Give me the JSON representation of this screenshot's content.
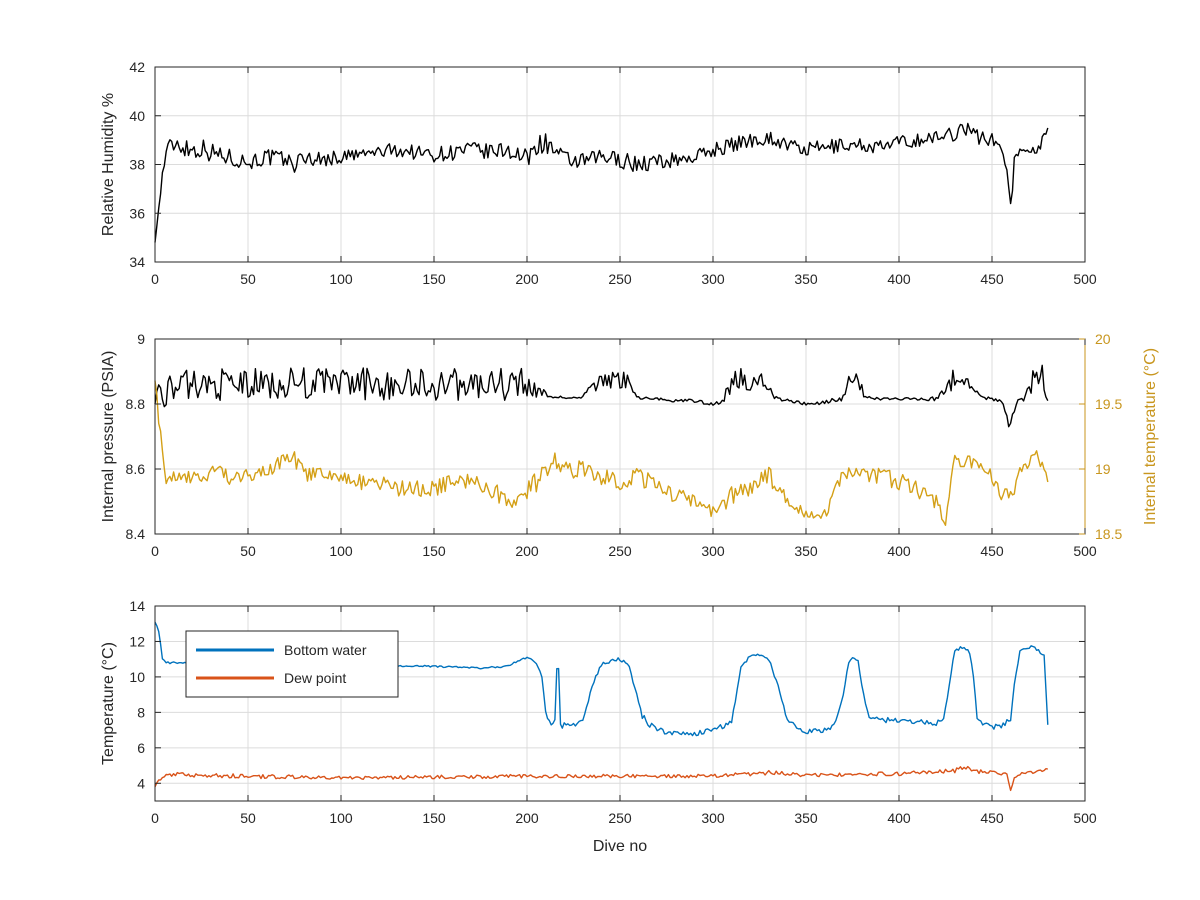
{
  "chart_data": [
    {
      "type": "line",
      "title": "",
      "xlabel": "",
      "ylabel": "Relative Humidity %",
      "xlim": [
        0,
        500
      ],
      "ylim": [
        34,
        42
      ],
      "grid": true,
      "x_ticks": [
        0,
        50,
        100,
        150,
        200,
        250,
        300,
        350,
        400,
        450,
        500
      ],
      "y_ticks": [
        34,
        36,
        38,
        40,
        42
      ],
      "series": [
        {
          "color": "#000000",
          "x": [
            0,
            1,
            2,
            3,
            4,
            5,
            6,
            8,
            10,
            15,
            20,
            25,
            30,
            35,
            40,
            45,
            50,
            60,
            70,
            75,
            80,
            90,
            100,
            110,
            120,
            130,
            140,
            150,
            160,
            170,
            180,
            190,
            195,
            200,
            205,
            210,
            220,
            230,
            240,
            250,
            260,
            270,
            280,
            290,
            300,
            310,
            320,
            330,
            340,
            350,
            360,
            370,
            380,
            390,
            400,
            410,
            420,
            430,
            435,
            440,
            445,
            450,
            455,
            458,
            460,
            461,
            462,
            465,
            470,
            475,
            478,
            480
          ],
          "y": [
            34.8,
            35.5,
            36.2,
            36.8,
            37.6,
            38.1,
            38.5,
            38.7,
            38.9,
            38.8,
            38.6,
            38.7,
            38.5,
            38.4,
            38.3,
            38.2,
            38.1,
            38.3,
            38.2,
            38.0,
            38.3,
            38.2,
            38.3,
            38.4,
            38.5,
            38.6,
            38.5,
            38.4,
            38.5,
            38.6,
            38.5,
            38.6,
            38.4,
            38.2,
            38.8,
            38.9,
            38.2,
            38.1,
            38.3,
            38.2,
            38.0,
            38.1,
            38.2,
            38.3,
            38.6,
            38.8,
            39.0,
            39.1,
            38.8,
            38.6,
            38.7,
            38.8,
            38.8,
            38.7,
            38.9,
            39.0,
            39.1,
            39.3,
            39.6,
            39.2,
            39.1,
            39.0,
            38.7,
            37.8,
            36.4,
            37.0,
            38.2,
            38.5,
            38.7,
            38.6,
            39.3,
            39.5
          ],
          "amp": [
            0,
            0,
            0,
            0,
            0.2,
            0.3,
            0.3,
            0.4,
            0.5,
            0.5,
            0.5,
            0.4,
            0.4,
            0.4,
            0.35,
            0.35,
            0.35,
            0.35,
            0.35,
            0.35,
            0.35,
            0.3,
            0.3,
            0.3,
            0.3,
            0.3,
            0.3,
            0.3,
            0.35,
            0.35,
            0.35,
            0.35,
            0.4,
            0.4,
            0.45,
            0.4,
            0.35,
            0.35,
            0.35,
            0.35,
            0.35,
            0.35,
            0.3,
            0.3,
            0.3,
            0.3,
            0.3,
            0.3,
            0.3,
            0.3,
            0.3,
            0.3,
            0.3,
            0.3,
            0.3,
            0.3,
            0.3,
            0.35,
            0.35,
            0.35,
            0.3,
            0.3,
            0.2,
            0.1,
            0,
            0.1,
            0.2,
            0.2,
            0.2,
            0.2,
            0.2,
            0.2
          ]
        }
      ]
    },
    {
      "type": "line",
      "title": "",
      "xlabel": "",
      "ylabel": "Internal pressure (PSIA)",
      "ylabel_right": "Internal temperature (°C)",
      "xlim": [
        0,
        500
      ],
      "ylim": [
        8.4,
        9
      ],
      "ylim_right": [
        18.5,
        20
      ],
      "grid": true,
      "x_ticks": [
        0,
        50,
        100,
        150,
        200,
        250,
        300,
        350,
        400,
        450,
        500
      ],
      "y_ticks": [
        8.4,
        8.6,
        8.8,
        9
      ],
      "y_ticks_right": [
        18.5,
        19,
        19.5,
        20
      ],
      "series": [
        {
          "axis": "left",
          "color": "#000000",
          "x": [
            0,
            2,
            5,
            8,
            20,
            40,
            60,
            80,
            100,
            120,
            140,
            160,
            180,
            198,
            200,
            205,
            210,
            215,
            220,
            230,
            236,
            245,
            255,
            260,
            270,
            280,
            290,
            300,
            305,
            310,
            320,
            330,
            333,
            340,
            350,
            360,
            370,
            373,
            378,
            382,
            390,
            400,
            410,
            420,
            430,
            435,
            440,
            445,
            455,
            458,
            459,
            461,
            463,
            468,
            472,
            478,
            480
          ],
          "y": [
            8.81,
            8.85,
            8.82,
            8.85,
            8.86,
            8.86,
            8.86,
            8.865,
            8.865,
            8.86,
            8.86,
            8.86,
            8.86,
            8.86,
            8.85,
            8.84,
            8.83,
            8.82,
            8.82,
            8.82,
            8.86,
            8.875,
            8.87,
            8.82,
            8.815,
            8.81,
            8.81,
            8.8,
            8.81,
            8.87,
            8.875,
            8.87,
            8.82,
            8.81,
            8.8,
            8.805,
            8.82,
            8.865,
            8.87,
            8.82,
            8.815,
            8.815,
            8.815,
            8.82,
            8.88,
            8.88,
            8.84,
            8.82,
            8.81,
            8.77,
            8.73,
            8.76,
            8.8,
            8.82,
            8.88,
            8.88,
            8.81
          ],
          "amp": [
            0.01,
            0.02,
            0.03,
            0.04,
            0.05,
            0.05,
            0.05,
            0.05,
            0.05,
            0.05,
            0.05,
            0.05,
            0.05,
            0.05,
            0.04,
            0.02,
            0.01,
            0.005,
            0.005,
            0.005,
            0.025,
            0.03,
            0.025,
            0.005,
            0.005,
            0.005,
            0.005,
            0.005,
            0.01,
            0.035,
            0.04,
            0.035,
            0.005,
            0.005,
            0.005,
            0.005,
            0.01,
            0.03,
            0.03,
            0.005,
            0.005,
            0.005,
            0.005,
            0.01,
            0.035,
            0.035,
            0.01,
            0.005,
            0.005,
            0.01,
            0,
            0.01,
            0.01,
            0.01,
            0.04,
            0.04,
            0.01
          ]
        },
        {
          "axis": "right",
          "color": "#D4A017",
          "x": [
            0,
            2,
            4,
            6,
            10,
            20,
            30,
            35,
            40,
            50,
            60,
            70,
            75,
            80,
            90,
            100,
            110,
            120,
            130,
            140,
            150,
            160,
            170,
            180,
            185,
            190,
            200,
            210,
            215,
            220,
            230,
            240,
            250,
            260,
            270,
            280,
            290,
            300,
            310,
            320,
            330,
            340,
            350,
            360,
            370,
            380,
            390,
            400,
            410,
            420,
            425,
            430,
            440,
            450,
            455,
            460,
            465,
            470,
            475,
            480
          ],
          "y": [
            19.7,
            19.4,
            19.1,
            18.9,
            18.95,
            18.95,
            18.95,
            19.05,
            18.9,
            18.95,
            19.0,
            19.05,
            19.1,
            18.95,
            18.95,
            18.95,
            18.9,
            18.9,
            18.85,
            18.85,
            18.85,
            18.9,
            18.9,
            18.85,
            18.8,
            18.75,
            18.85,
            18.95,
            19.1,
            19.0,
            19.0,
            18.95,
            18.9,
            18.95,
            18.85,
            18.8,
            18.75,
            18.65,
            18.8,
            18.85,
            18.95,
            18.75,
            18.65,
            18.65,
            18.95,
            18.95,
            18.95,
            18.9,
            18.85,
            18.75,
            18.6,
            19.05,
            19.05,
            18.95,
            18.8,
            18.8,
            18.95,
            19.05,
            19.1,
            18.9
          ],
          "amp": [
            0.02,
            0.05,
            0.05,
            0.04,
            0.05,
            0.06,
            0.06,
            0.08,
            0.06,
            0.06,
            0.06,
            0.07,
            0.08,
            0.06,
            0.06,
            0.05,
            0.06,
            0.06,
            0.06,
            0.06,
            0.06,
            0.07,
            0.07,
            0.07,
            0.07,
            0.07,
            0.08,
            0.09,
            0.1,
            0.07,
            0.07,
            0.07,
            0.07,
            0.07,
            0.07,
            0.06,
            0.06,
            0.06,
            0.07,
            0.07,
            0.07,
            0.06,
            0.04,
            0.04,
            0.06,
            0.06,
            0.06,
            0.07,
            0.07,
            0.07,
            0.08,
            0.06,
            0.05,
            0.05,
            0.05,
            0.05,
            0.06,
            0.06,
            0.06,
            0.04
          ]
        }
      ]
    },
    {
      "type": "line",
      "title": "",
      "xlabel": "Dive no",
      "ylabel": "Temperature (°C)",
      "xlim": [
        0,
        500
      ],
      "ylim": [
        3,
        14
      ],
      "grid": true,
      "legend_position": "top-left",
      "x_ticks": [
        0,
        50,
        100,
        150,
        200,
        250,
        300,
        350,
        400,
        450,
        500
      ],
      "y_ticks": [
        4,
        6,
        8,
        10,
        12,
        14
      ],
      "series": [
        {
          "name": "Bottom water",
          "color": "#0072BD",
          "x": [
            0,
            2,
            4,
            6,
            10,
            30,
            50,
            80,
            100,
            130,
            150,
            175,
            190,
            195,
            200,
            205,
            208,
            210,
            212,
            215,
            216,
            217,
            218,
            220,
            225,
            230,
            235,
            240,
            245,
            250,
            255,
            260,
            262,
            265,
            270,
            280,
            290,
            300,
            305,
            310,
            315,
            320,
            325,
            330,
            335,
            340,
            350,
            360,
            365,
            370,
            373,
            375,
            378,
            380,
            383,
            385,
            390,
            400,
            410,
            420,
            424,
            427,
            430,
            435,
            438,
            440,
            442,
            445,
            450,
            455,
            460,
            462,
            465,
            470,
            475,
            478,
            480
          ],
          "y": [
            13.1,
            12.6,
            11.0,
            10.8,
            10.8,
            10.8,
            10.8,
            10.7,
            10.7,
            10.6,
            10.6,
            10.5,
            10.6,
            10.9,
            11.1,
            10.8,
            10.0,
            8.0,
            7.4,
            7.5,
            10.5,
            10.5,
            7.2,
            7.3,
            7.3,
            7.5,
            9.5,
            10.7,
            10.9,
            11.0,
            10.6,
            8.5,
            7.8,
            7.4,
            7.0,
            6.8,
            6.8,
            7.0,
            7.2,
            7.5,
            10.5,
            11.2,
            11.3,
            11.0,
            9.5,
            7.5,
            6.9,
            7.0,
            7.2,
            9.0,
            10.8,
            11.1,
            10.9,
            9.5,
            8.0,
            7.6,
            7.6,
            7.5,
            7.5,
            7.4,
            7.5,
            9.5,
            11.5,
            11.7,
            11.4,
            10.0,
            7.8,
            7.3,
            7.2,
            7.2,
            7.6,
            9.5,
            11.4,
            11.7,
            11.5,
            11.2,
            7.3
          ],
          "amp": [
            0,
            0.05,
            0.05,
            0.05,
            0.05,
            0.05,
            0.05,
            0.05,
            0.05,
            0.05,
            0.05,
            0.05,
            0.05,
            0.05,
            0.05,
            0.05,
            0.1,
            0.15,
            0.15,
            0.15,
            0.1,
            0.1,
            0.15,
            0.15,
            0.15,
            0.15,
            0.1,
            0.1,
            0.1,
            0.1,
            0.1,
            0.15,
            0.15,
            0.15,
            0.15,
            0.15,
            0.15,
            0.15,
            0.15,
            0.15,
            0.1,
            0.1,
            0.1,
            0.1,
            0.1,
            0.15,
            0.15,
            0.15,
            0.15,
            0.1,
            0.1,
            0.1,
            0.1,
            0.1,
            0.15,
            0.15,
            0.15,
            0.15,
            0.15,
            0.15,
            0.15,
            0.1,
            0.1,
            0.1,
            0.1,
            0.1,
            0.15,
            0.15,
            0.15,
            0.15,
            0.15,
            0.1,
            0.1,
            0.1,
            0.1,
            0.1,
            0.05
          ]
        },
        {
          "name": "Dew point",
          "color": "#D95319",
          "x": [
            0,
            2,
            5,
            10,
            50,
            100,
            150,
            200,
            250,
            300,
            330,
            350,
            380,
            400,
            430,
            435,
            440,
            455,
            458,
            460,
            462,
            465,
            470,
            478,
            480
          ],
          "y": [
            3.8,
            4.2,
            4.4,
            4.5,
            4.4,
            4.3,
            4.35,
            4.4,
            4.4,
            4.4,
            4.6,
            4.45,
            4.5,
            4.55,
            4.7,
            4.95,
            4.7,
            4.55,
            4.5,
            3.6,
            4.3,
            4.55,
            4.6,
            4.75,
            4.8
          ],
          "amp": [
            0,
            0.1,
            0.12,
            0.12,
            0.12,
            0.1,
            0.1,
            0.1,
            0.1,
            0.1,
            0.12,
            0.1,
            0.1,
            0.12,
            0.12,
            0.12,
            0.12,
            0.1,
            0.05,
            0,
            0.05,
            0.08,
            0.08,
            0.08,
            0.08
          ]
        }
      ]
    }
  ]
}
